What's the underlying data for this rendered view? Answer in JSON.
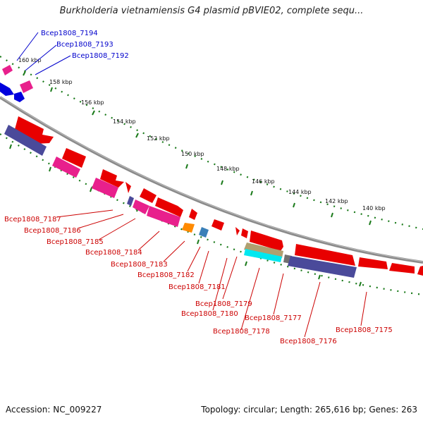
{
  "title": "Burkholderia vietnamiensis G4 plasmid pBVIE02, complete sequ...",
  "footer": {
    "accession": "Accession: NC_009227",
    "summary": "Topology: circular; Length: 265,616 bp; Genes: 263"
  },
  "scale_labels": [
    "160 kbp",
    "158 kbp",
    "156 kbp",
    "154 kbp",
    "152 kbp",
    "150 kbp",
    "148 kbp",
    "146 kbp",
    "144 kbp",
    "142 kbp",
    "140 kbp"
  ],
  "gene_labels_top": [
    "Bcep1808_7194",
    "Bcep1808_7193",
    "Bcep1808_7192"
  ],
  "gene_labels_bottom": [
    "Bcep1808_7187",
    "Bcep1808_7186",
    "Bcep1808_7185",
    "Bcep1808_7184",
    "Bcep1808_7183",
    "Bcep1808_7182",
    "Bcep1808_7181",
    "Bcep1808_7179",
    "Bcep1808_7180",
    "Bcep1808_7177",
    "Bcep1808_7178",
    "Bcep1808_7176",
    "Bcep1808_7175"
  ],
  "colors": {
    "backbone": "#888888",
    "ticks": "#1a7a1a",
    "gene_red": "#e80000",
    "gene_pink": "#e8208c",
    "gene_blue": "#0000dd",
    "gene_slate": "#4a4a9a",
    "gene_orange": "#ff8a00",
    "gene_steel": "#3a80b8",
    "gene_khaki": "#b0a070",
    "gene_cyan": "#00e8f0",
    "gene_gray": "#707070",
    "label_top": "#0000cc",
    "label_bottom": "#cc0000"
  }
}
